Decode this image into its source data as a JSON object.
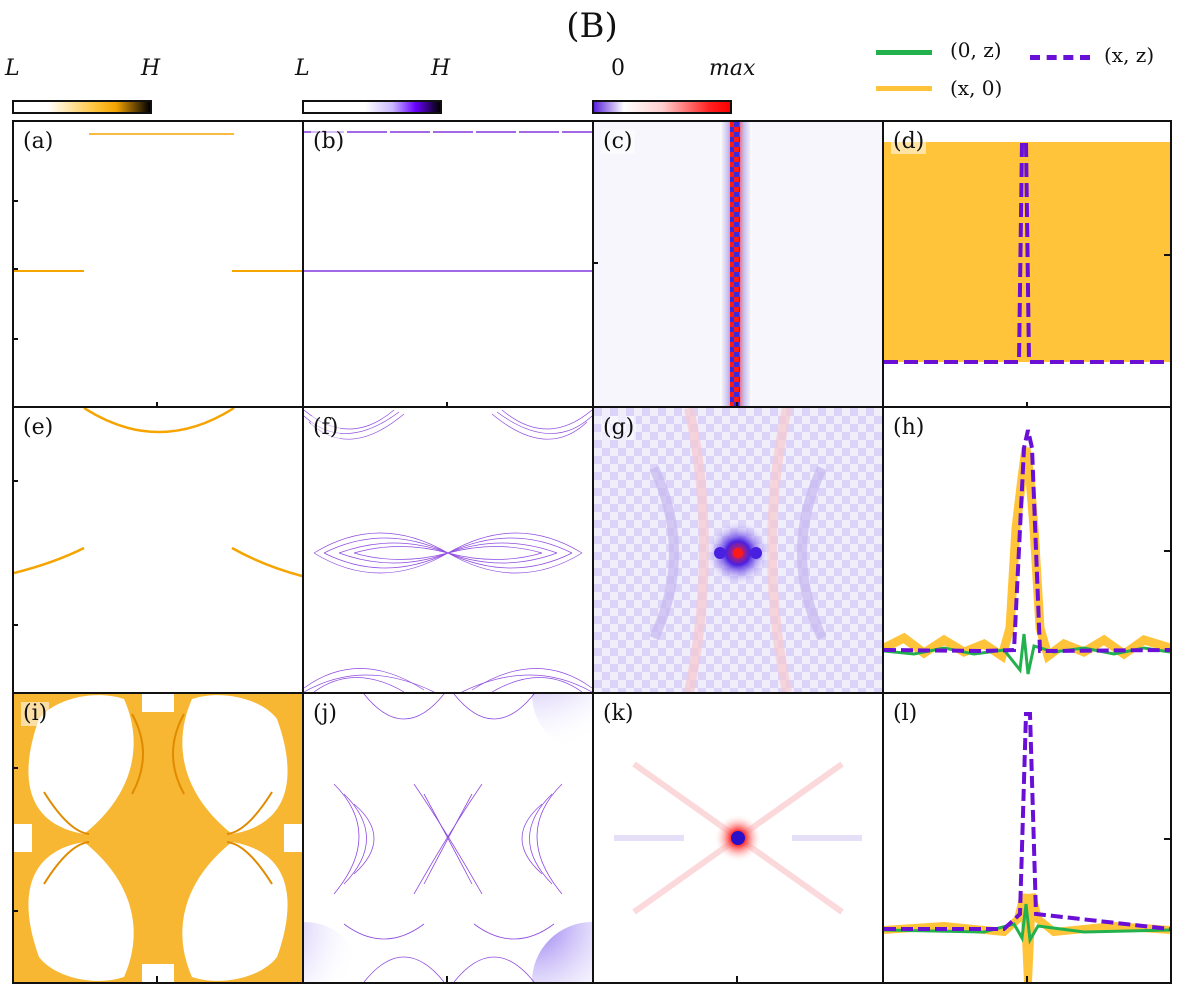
{
  "figure": {
    "title": "(B)",
    "colorbars": [
      {
        "id": "orange",
        "low": "L",
        "high": "H",
        "colors": [
          "#ffffff",
          "#ffc43a",
          "#f5a400",
          "#000000"
        ]
      },
      {
        "id": "purple",
        "low": "L",
        "high": "H",
        "colors": [
          "#ffffff",
          "#c9b8ff",
          "#6a00ff",
          "#000000"
        ]
      },
      {
        "id": "diverging",
        "low": "0",
        "high": "max",
        "colors": [
          "#5a22d8",
          "#ffffff",
          "#ffb0b0",
          "#ff0000"
        ]
      }
    ],
    "legend": [
      {
        "label": "(0, z)",
        "color": "#22b14c",
        "style": "solid"
      },
      {
        "label": "(x, 0)",
        "color": "#ffc43a",
        "style": "solid"
      },
      {
        "label": "(x, z)",
        "color": "#6a0fd6",
        "style": "dashed"
      }
    ],
    "panels": [
      "(a)",
      "(b)",
      "(c)",
      "(d)",
      "(e)",
      "(f)",
      "(g)",
      "(h)",
      "(i)",
      "(j)",
      "(k)",
      "(l)"
    ],
    "colors": {
      "orange": "#f5a400",
      "purple": "#6a0fd6",
      "green": "#22b14c",
      "red": "#ff2020",
      "blue": "#4a20e0"
    }
  }
}
